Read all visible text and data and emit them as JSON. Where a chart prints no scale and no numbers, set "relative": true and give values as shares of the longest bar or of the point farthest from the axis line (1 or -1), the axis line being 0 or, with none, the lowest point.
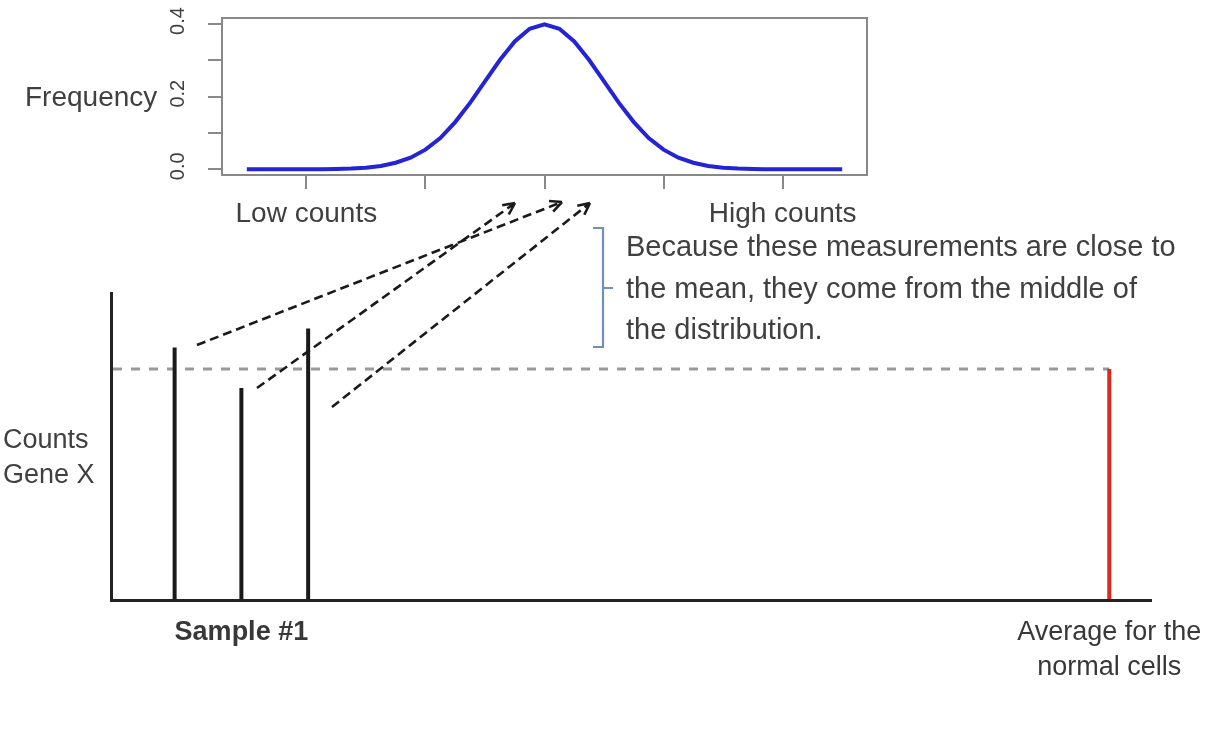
{
  "chart_data": [
    {
      "type": "line",
      "categories": [
        null,
        null,
        null,
        null,
        "Low counts",
        null,
        null,
        null,
        null,
        null,
        null,
        null,
        null,
        null,
        null,
        null,
        null,
        null,
        null,
        null,
        null,
        null,
        null,
        null,
        null,
        null,
        null,
        null,
        null,
        null,
        null,
        null,
        null,
        null,
        null,
        null,
        "High counts",
        null,
        null,
        null,
        null
      ],
      "values": [
        0,
        0,
        0,
        0,
        0,
        0,
        0.001,
        0.002,
        0.004,
        0.009,
        0.018,
        0.032,
        0.054,
        0.086,
        0.13,
        0.183,
        0.242,
        0.301,
        0.352,
        0.387,
        0.399,
        0.387,
        0.352,
        0.301,
        0.242,
        0.183,
        0.13,
        0.086,
        0.054,
        0.032,
        0.018,
        0.009,
        0.004,
        0.002,
        0.001,
        0,
        0,
        0,
        0,
        0,
        0
      ],
      "color": "#2424d6",
      "ylim": [
        -0.013,
        0.414
      ],
      "yticks": [
        {
          "value": 0,
          "label": "0.0"
        },
        {
          "value": 0.1,
          "label": null
        },
        {
          "value": 0.2,
          "label": "0.2"
        },
        {
          "value": 0.3,
          "label": null
        },
        {
          "value": 0.4,
          "label": "0.4"
        }
      ],
      "ylabel": "Frequency",
      "annotations": [
        "Because these measurements are close to\nthe mean, they come from the middle of\nthe distribution."
      ]
    },
    {
      "type": "bar",
      "relative": true,
      "categories": [
        null,
        "Sample #1",
        null,
        null,
        null,
        null,
        null,
        null,
        null,
        null,
        null,
        null,
        null,
        null,
        "Average for the\nnormal cells"
      ],
      "values": [
        0.93,
        0.78,
        1,
        null,
        null,
        null,
        null,
        null,
        null,
        null,
        null,
        null,
        null,
        null,
        0.85
      ],
      "colors": [
        "#1a1a1a",
        "#1a1a1a",
        "#1a1a1a",
        "#1a1a1a",
        "#1a1a1a",
        "#1a1a1a",
        "#1a1a1a",
        "#1a1a1a",
        "#1a1a1a",
        "#1a1a1a",
        "#1a1a1a",
        "#1a1a1a",
        "#1a1a1a",
        "#1a1a1a",
        "#d62b1e"
      ],
      "ylabel": "Counts\nGene X",
      "ref_lines": [
        {
          "axis": "y",
          "value": 0.85,
          "color": "#999999",
          "line_style": "dashed"
        }
      ]
    }
  ]
}
